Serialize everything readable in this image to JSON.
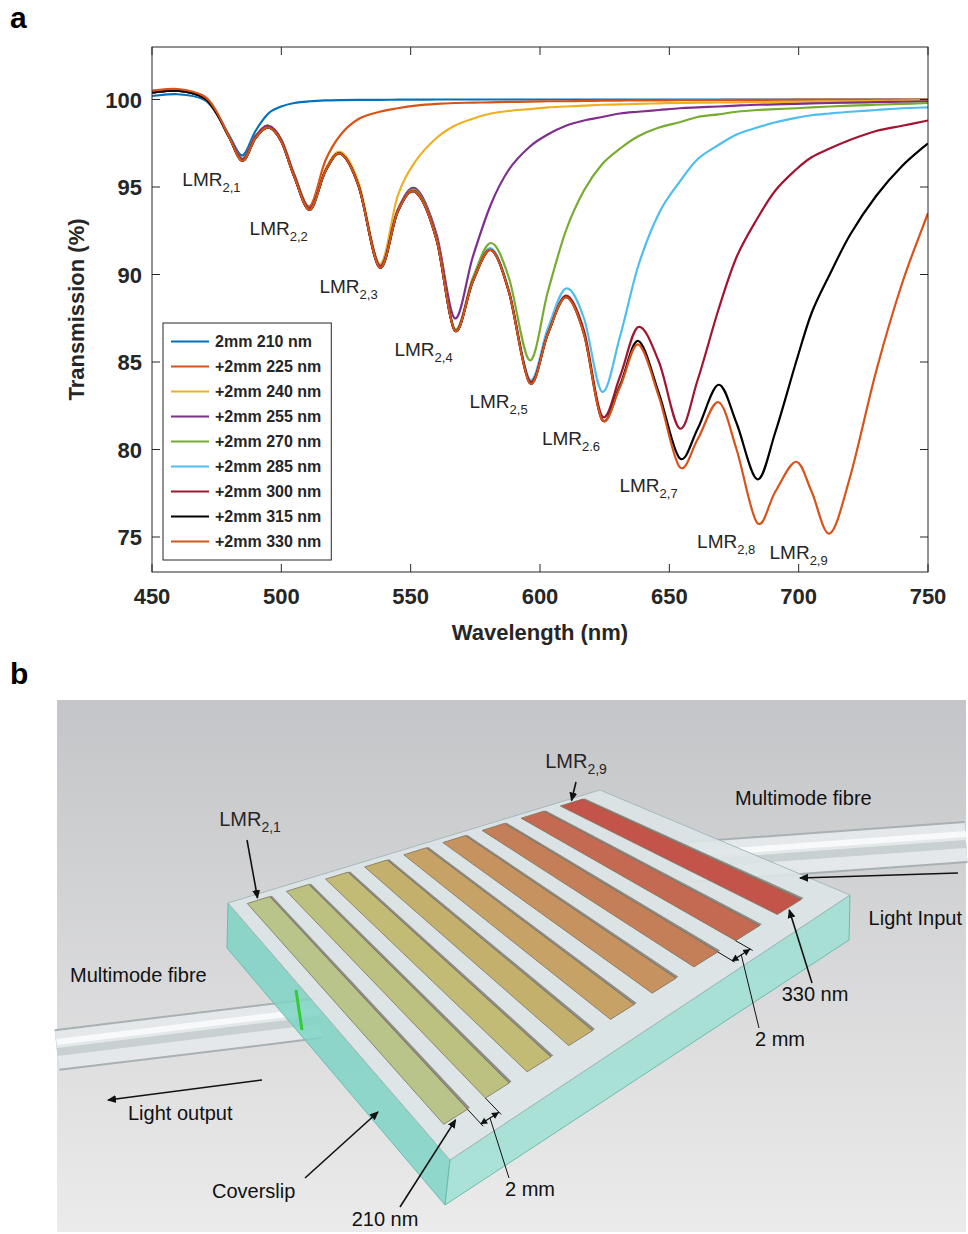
{
  "chart_data": {
    "type": "line",
    "panel_label": "a",
    "xlabel": "Wavelength (nm)",
    "ylabel": "Transmission (%)",
    "xlim": [
      450,
      750
    ],
    "ylim": [
      73,
      103
    ],
    "xticks": [
      450,
      500,
      550,
      600,
      650,
      700,
      750
    ],
    "yticks": [
      75,
      80,
      85,
      90,
      95,
      100
    ],
    "grid": false,
    "legend": "southwest",
    "x": [
      450,
      460,
      470,
      475,
      480,
      485,
      490,
      495,
      500,
      505,
      511,
      517,
      523,
      530,
      538,
      545,
      552,
      560,
      567,
      574,
      581,
      588,
      596,
      603,
      610,
      617,
      624,
      631,
      638,
      646,
      654,
      661,
      669,
      676,
      684,
      691,
      699,
      705,
      712,
      720,
      730,
      740,
      750
    ],
    "series": [
      {
        "name": "2mm 210 nm",
        "color": "#0072bd",
        "values": [
          100.2,
          100.3,
          100.0,
          99.2,
          97.9,
          96.8,
          98.2,
          99.2,
          99.6,
          99.8,
          99.9,
          99.95,
          99.97,
          99.98,
          99.98,
          99.99,
          99.99,
          100,
          100,
          100,
          100,
          100,
          100,
          100,
          100,
          100,
          100,
          100,
          100,
          100,
          100,
          100,
          100,
          100,
          100,
          100,
          100,
          100,
          100,
          100,
          100,
          100,
          100
        ]
      },
      {
        "name": "+2mm 225 nm",
        "color": "#d95319",
        "values": [
          100.4,
          100.5,
          100.1,
          99.2,
          97.8,
          96.6,
          97.9,
          98.5,
          97.7,
          95.7,
          93.9,
          96.5,
          98.0,
          98.9,
          99.3,
          99.5,
          99.65,
          99.75,
          99.8,
          99.82,
          99.84,
          99.86,
          99.88,
          99.9,
          99.9,
          99.92,
          99.93,
          99.94,
          99.95,
          99.95,
          99.96,
          99.97,
          99.97,
          99.98,
          99.98,
          99.98,
          99.99,
          99.99,
          99.99,
          100,
          100,
          100,
          100
        ]
      },
      {
        "name": "+2mm 240 nm",
        "color": "#edb120",
        "values": [
          100.4,
          100.5,
          100.1,
          99.2,
          97.8,
          96.6,
          97.9,
          98.5,
          97.7,
          95.7,
          93.8,
          96.0,
          97.0,
          95.2,
          90.6,
          94.5,
          96.5,
          97.8,
          98.5,
          98.9,
          99.2,
          99.35,
          99.45,
          99.55,
          99.6,
          99.65,
          99.7,
          99.72,
          99.75,
          99.78,
          99.8,
          99.82,
          99.83,
          99.84,
          99.85,
          99.86,
          99.87,
          99.88,
          99.9,
          99.9,
          99.92,
          99.94,
          99.95
        ]
      },
      {
        "name": "+2mm 255 nm",
        "color": "#7e2f8e",
        "values": [
          100.4,
          100.5,
          100.1,
          99.2,
          97.8,
          96.6,
          97.9,
          98.5,
          97.7,
          95.7,
          93.8,
          95.9,
          96.9,
          95.0,
          90.5,
          93.7,
          94.9,
          92.3,
          87.5,
          91.0,
          94.0,
          96.0,
          97.3,
          98.0,
          98.5,
          98.8,
          99.0,
          99.2,
          99.3,
          99.4,
          99.5,
          99.55,
          99.6,
          99.65,
          99.7,
          99.72,
          99.75,
          99.78,
          99.8,
          99.82,
          99.85,
          99.87,
          99.9
        ]
      },
      {
        "name": "+2mm 270 nm",
        "color": "#77ac30",
        "values": [
          100.4,
          100.5,
          100.1,
          99.2,
          97.8,
          96.5,
          97.8,
          98.4,
          97.6,
          95.6,
          93.7,
          95.9,
          96.9,
          95.0,
          90.4,
          93.6,
          94.8,
          92.1,
          86.9,
          89.8,
          91.8,
          89.8,
          85.1,
          89.0,
          92.5,
          94.8,
          96.3,
          97.2,
          97.9,
          98.4,
          98.7,
          99.0,
          99.15,
          99.3,
          99.4,
          99.45,
          99.5,
          99.55,
          99.6,
          99.65,
          99.7,
          99.75,
          99.8
        ]
      },
      {
        "name": "+2mm 285 nm",
        "color": "#4dbeee",
        "values": [
          100.4,
          100.5,
          100.1,
          99.2,
          97.8,
          96.5,
          97.8,
          98.4,
          97.6,
          95.6,
          93.7,
          95.9,
          96.9,
          95.0,
          90.4,
          93.6,
          94.7,
          92.0,
          86.8,
          89.6,
          91.5,
          89.1,
          84.0,
          86.9,
          89.2,
          87.5,
          83.3,
          86.5,
          90.5,
          93.5,
          95.3,
          96.6,
          97.4,
          98.0,
          98.4,
          98.7,
          98.95,
          99.1,
          99.2,
          99.3,
          99.4,
          99.5,
          99.55
        ]
      },
      {
        "name": "+2mm 300 nm",
        "color": "#a2142f",
        "values": [
          100.4,
          100.5,
          100.1,
          99.2,
          97.8,
          96.5,
          97.8,
          98.4,
          97.6,
          95.6,
          93.7,
          95.9,
          96.9,
          95.0,
          90.4,
          93.6,
          94.7,
          92.0,
          86.8,
          89.6,
          91.4,
          89.0,
          83.9,
          86.6,
          88.8,
          86.8,
          81.9,
          84.2,
          87.0,
          85.0,
          81.2,
          84.0,
          88.0,
          91.0,
          93.2,
          94.8,
          96.0,
          96.7,
          97.2,
          97.7,
          98.2,
          98.5,
          98.8
        ]
      },
      {
        "name": "+2mm 315 nm",
        "color": "#000000",
        "values": [
          100.4,
          100.5,
          100.1,
          99.2,
          97.8,
          96.5,
          97.8,
          98.4,
          97.6,
          95.6,
          93.7,
          95.9,
          96.9,
          95.0,
          90.4,
          93.6,
          94.7,
          92.0,
          86.8,
          89.6,
          91.4,
          89.0,
          83.8,
          86.6,
          88.7,
          86.6,
          81.7,
          83.7,
          86.2,
          83.2,
          79.5,
          81.2,
          83.7,
          81.5,
          78.3,
          81.0,
          85.0,
          87.8,
          90.0,
          92.3,
          94.5,
          96.2,
          97.5
        ]
      },
      {
        "name": "+2mm 330 nm",
        "color": "#d95319",
        "values": [
          100.5,
          100.6,
          100.2,
          99.3,
          97.8,
          96.5,
          97.8,
          98.4,
          97.6,
          95.6,
          93.7,
          95.9,
          96.9,
          95.0,
          90.4,
          93.6,
          94.7,
          92.0,
          86.8,
          89.6,
          91.4,
          89.0,
          83.8,
          86.6,
          88.7,
          86.6,
          81.7,
          83.6,
          86.0,
          83.0,
          79.0,
          80.6,
          82.7,
          80.0,
          75.8,
          77.6,
          79.3,
          77.6,
          75.2,
          78.5,
          84.5,
          89.5,
          93.5
        ]
      }
    ],
    "annotations": [
      {
        "text": "LMR",
        "sub": "2,1",
        "x": 485
      },
      {
        "text": "LMR",
        "sub": "2,2",
        "x": 511
      },
      {
        "text": "LMR",
        "sub": "2,3",
        "x": 538
      },
      {
        "text": "LMR",
        "sub": "2,4",
        "x": 567
      },
      {
        "text": "LMR",
        "sub": "2,5",
        "x": 596
      },
      {
        "text": "LMR",
        "sub": "2.6",
        "x": 624
      },
      {
        "text": "LMR",
        "sub": "2,7",
        "x": 654
      },
      {
        "text": "LMR",
        "sub": "2,8",
        "x": 684
      },
      {
        "text": "LMR",
        "sub": "2,9",
        "x": 712
      }
    ]
  },
  "diagram": {
    "panel_label": "b",
    "strip_colors": [
      "#b8c48a",
      "#bcc180",
      "#c1bb76",
      "#c4b06d",
      "#c6a266",
      "#c6925f",
      "#c47f58",
      "#c46a52",
      "#c2544a"
    ],
    "lmr_first": {
      "text": "LMR",
      "sub": "2,1"
    },
    "lmr_last": {
      "text": "LMR",
      "sub": "2,9"
    },
    "fibre_right": "Multimode fibre",
    "light_input": "Light Input",
    "fibre_left": "Multimode fibre",
    "light_output": "Light output",
    "coverslip": "Coverslip",
    "thickness_first": "210 nm",
    "thickness_last": "330 nm",
    "spacing": [
      "2 mm",
      "2 mm"
    ]
  }
}
